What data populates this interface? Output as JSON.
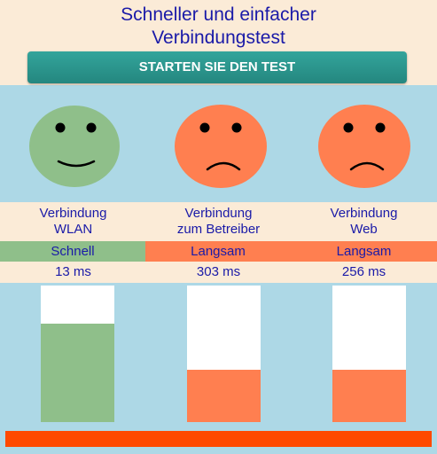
{
  "header": {
    "title_line1": "Schneller und einfacher",
    "title_line2": "Verbindungstest",
    "start_button_label": "STARTEN SIE DEN TEST"
  },
  "connections": [
    {
      "label_line1": "Verbindung",
      "label_line2": "WLAN",
      "status": "Schnell",
      "latency": "13 ms",
      "face": "happy-face-icon",
      "color": "#8fbf8a",
      "bar_fill_fraction": 0.72
    },
    {
      "label_line1": "Verbindung",
      "label_line2": "zum Betreiber",
      "status": "Langsam",
      "latency": "303 ms",
      "face": "sad-face-icon",
      "color": "#ff7f50",
      "bar_fill_fraction": 0.38
    },
    {
      "label_line1": "Verbindung",
      "label_line2": "Web",
      "status": "Langsam",
      "latency": "256 ms",
      "face": "sad-face-icon",
      "color": "#ff7f50",
      "bar_fill_fraction": 0.38
    }
  ],
  "colors": {
    "background": "#add8e6",
    "panel": "#fbebd7",
    "text": "#1a1aa8",
    "button": "#2a958c",
    "bottom_strip": "#ff4a00"
  }
}
